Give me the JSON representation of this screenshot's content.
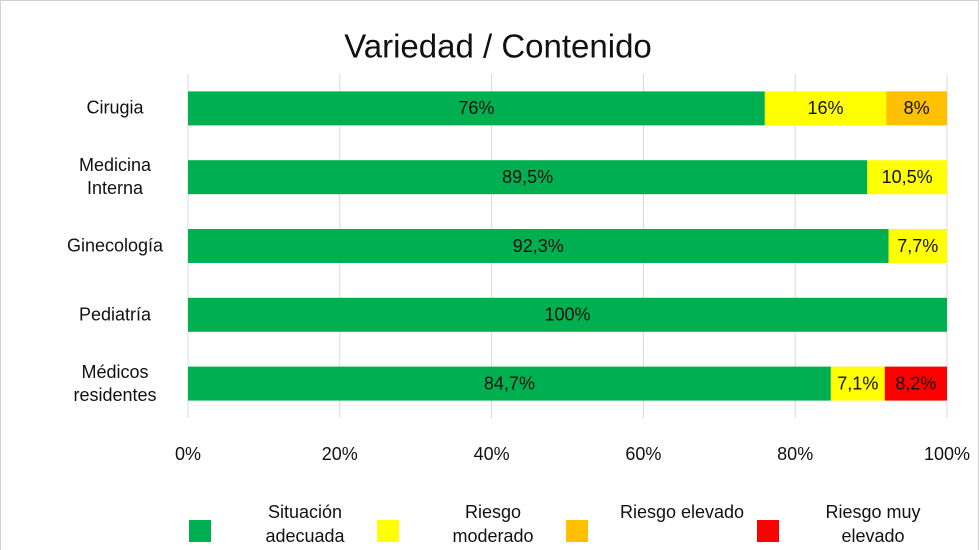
{
  "chart_data": {
    "type": "stacked-bar-horizontal",
    "title": "Variedad / Contenido",
    "categories": [
      "Cirugia",
      "Medicina Interna",
      "Ginecología",
      "Pediatría",
      "Médicos residentes"
    ],
    "series": [
      {
        "name": "Situación adecuada",
        "color": "#00b050",
        "values": [
          76,
          89.5,
          92.3,
          100,
          84.7
        ],
        "value_labels": [
          "76%",
          "89,5%",
          "92,3%",
          "100%",
          "84,7%"
        ]
      },
      {
        "name": "Riesgo moderado",
        "color": "#ffff00",
        "values": [
          16,
          10.5,
          7.7,
          0,
          7.1
        ],
        "value_labels": [
          "16%",
          "10,5%",
          "7,7%",
          null,
          "7,1%"
        ]
      },
      {
        "name": "Riesgo elevado",
        "color": "#ffc000",
        "values": [
          8,
          0,
          0,
          0,
          0
        ],
        "value_labels": [
          "8%",
          null,
          null,
          null,
          null
        ]
      },
      {
        "name": "Riesgo muy elevado",
        "color": "#ff0000",
        "values": [
          0,
          0,
          0,
          0,
          8.2
        ],
        "value_labels": [
          null,
          null,
          null,
          null,
          "8,2%"
        ]
      }
    ],
    "xlim": [
      0,
      100
    ],
    "xticks": [
      {
        "value": 0,
        "label": "0%"
      },
      {
        "value": 20,
        "label": "20%"
      },
      {
        "value": 40,
        "label": "40%"
      },
      {
        "value": 60,
        "label": "60%"
      },
      {
        "value": 80,
        "label": "80%"
      },
      {
        "value": 100,
        "label": "100%"
      }
    ],
    "grid": true,
    "legend": "bottom"
  }
}
